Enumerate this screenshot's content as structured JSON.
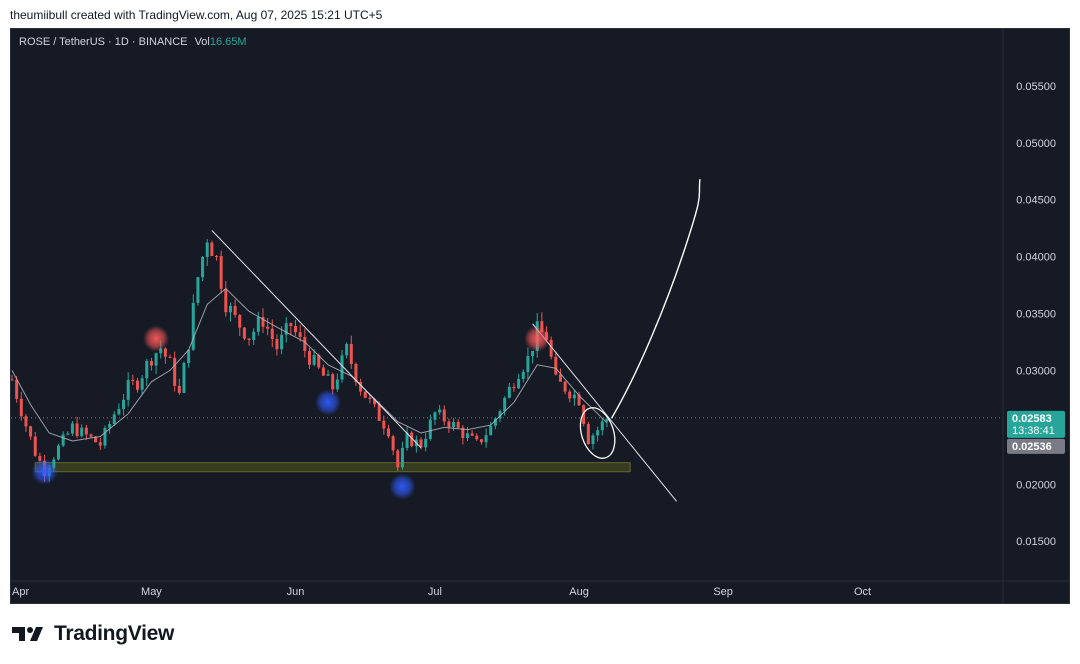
{
  "header": {
    "attribution": "theumiibull created with TradingView.com, Aug 07, 2025 15:21 UTC+5"
  },
  "legend": {
    "symbol": "ROSE / TetherUS · 1D · BINANCE",
    "vol_label": "Vol",
    "vol_value": "16.65M"
  },
  "price_scale": {
    "current_price": "0.02583",
    "countdown": "13:38:41",
    "ma_value": "0.02536"
  },
  "footer": {
    "brand": "TradingView"
  },
  "colors": {
    "up": "#26a69a",
    "down": "#ef5350",
    "background": "#161a25",
    "ma_line": "#b2b5be",
    "support_zone": "#3b4021",
    "current_price_label": "#26a69a",
    "ma_label": "#787b86"
  },
  "chart_data": {
    "type": "candlestick",
    "title": "ROSE / TetherUS · 1D · BINANCE",
    "y_ticks": [
      "0.05500",
      "0.05000",
      "0.04500",
      "0.04000",
      "0.03500",
      "0.03000",
      "0.02000",
      "0.01500"
    ],
    "y_tick_values": [
      0.055,
      0.05,
      0.045,
      0.04,
      0.035,
      0.03,
      0.02,
      0.015
    ],
    "x_ticks": [
      "Apr",
      "May",
      "Jun",
      "Jul",
      "Aug",
      "Sep",
      "Oct"
    ],
    "x_tick_dates": [
      "2025-04-01",
      "2025-05-01",
      "2025-06-01",
      "2025-07-01",
      "2025-08-01",
      "2025-09-01",
      "2025-10-01"
    ],
    "xlim": [
      "2025-04-01",
      "2025-10-31"
    ],
    "ylim": [
      0.0115,
      0.06
    ],
    "grid": false,
    "close_path": [
      [
        "2025-04-01",
        0.0292
      ],
      [
        "2025-04-04",
        0.0252
      ],
      [
        "2025-04-06",
        0.0228
      ],
      [
        "2025-04-08",
        0.0212
      ],
      [
        "2025-04-11",
        0.0232
      ],
      [
        "2025-04-14",
        0.025
      ],
      [
        "2025-04-18",
        0.024
      ],
      [
        "2025-04-20",
        0.0235
      ],
      [
        "2025-04-23",
        0.0262
      ],
      [
        "2025-04-26",
        0.0285
      ],
      [
        "2025-04-28",
        0.029
      ],
      [
        "2025-05-01",
        0.0312
      ],
      [
        "2025-05-03",
        0.032
      ],
      [
        "2025-05-05",
        0.0305
      ],
      [
        "2025-05-07",
        0.0278
      ],
      [
        "2025-05-09",
        0.0325
      ],
      [
        "2025-05-11",
        0.0382
      ],
      [
        "2025-05-13",
        0.0418
      ],
      [
        "2025-05-15",
        0.0398
      ],
      [
        "2025-05-17",
        0.036
      ],
      [
        "2025-05-19",
        0.0345
      ],
      [
        "2025-05-22",
        0.033
      ],
      [
        "2025-05-25",
        0.0345
      ],
      [
        "2025-05-28",
        0.032
      ],
      [
        "2025-05-31",
        0.034
      ],
      [
        "2025-06-03",
        0.0318
      ],
      [
        "2025-06-06",
        0.03
      ],
      [
        "2025-06-09",
        0.0285
      ],
      [
        "2025-06-12",
        0.0318
      ],
      [
        "2025-06-15",
        0.0285
      ],
      [
        "2025-06-18",
        0.0265
      ],
      [
        "2025-06-21",
        0.0248
      ],
      [
        "2025-06-23",
        0.0215
      ],
      [
        "2025-06-25",
        0.024
      ],
      [
        "2025-06-28",
        0.0235
      ],
      [
        "2025-07-01",
        0.0262
      ],
      [
        "2025-07-04",
        0.0255
      ],
      [
        "2025-07-07",
        0.0245
      ],
      [
        "2025-07-10",
        0.0235
      ],
      [
        "2025-07-13",
        0.025
      ],
      [
        "2025-07-16",
        0.0275
      ],
      [
        "2025-07-19",
        0.03
      ],
      [
        "2025-07-21",
        0.031
      ],
      [
        "2025-07-23",
        0.0335
      ],
      [
        "2025-07-25",
        0.033
      ],
      [
        "2025-07-27",
        0.029
      ],
      [
        "2025-07-29",
        0.0285
      ],
      [
        "2025-08-01",
        0.0275
      ],
      [
        "2025-08-03",
        0.024
      ],
      [
        "2025-08-05",
        0.0248
      ],
      [
        "2025-08-07",
        0.0258
      ]
    ],
    "ma_path": [
      [
        "2025-04-01",
        0.03
      ],
      [
        "2025-04-05",
        0.027
      ],
      [
        "2025-04-09",
        0.0245
      ],
      [
        "2025-04-14",
        0.0238
      ],
      [
        "2025-04-20",
        0.0242
      ],
      [
        "2025-04-26",
        0.0262
      ],
      [
        "2025-05-01",
        0.029
      ],
      [
        "2025-05-05",
        0.03
      ],
      [
        "2025-05-09",
        0.0318
      ],
      [
        "2025-05-13",
        0.0358
      ],
      [
        "2025-05-17",
        0.0372
      ],
      [
        "2025-05-22",
        0.0352
      ],
      [
        "2025-05-28",
        0.0338
      ],
      [
        "2025-06-03",
        0.0325
      ],
      [
        "2025-06-08",
        0.0305
      ],
      [
        "2025-06-13",
        0.0295
      ],
      [
        "2025-06-18",
        0.0275
      ],
      [
        "2025-06-23",
        0.0255
      ],
      [
        "2025-06-28",
        0.0245
      ],
      [
        "2025-07-03",
        0.025
      ],
      [
        "2025-07-08",
        0.0248
      ],
      [
        "2025-07-13",
        0.0252
      ],
      [
        "2025-07-18",
        0.0272
      ],
      [
        "2025-07-23",
        0.0305
      ],
      [
        "2025-07-27",
        0.0302
      ],
      [
        "2025-08-01",
        0.0278
      ],
      [
        "2025-08-05",
        0.0262
      ],
      [
        "2025-08-07",
        0.0254
      ]
    ],
    "annotations": {
      "trendline_1": [
        [
          "2025-05-14",
          0.0423
        ],
        [
          "2025-06-28",
          0.0232
        ]
      ],
      "trendline_2": [
        [
          "2025-07-22",
          0.0341
        ],
        [
          "2025-08-22",
          0.0185
        ]
      ],
      "support_zone": {
        "x": [
          "2025-04-06",
          "2025-08-12"
        ],
        "y": [
          0.0211,
          0.0219
        ]
      },
      "price_line": 0.02583,
      "projection_arrow": [
        [
          "2025-08-08",
          0.0258
        ],
        [
          "2025-08-14",
          0.03
        ],
        [
          "2025-08-20",
          0.036
        ],
        [
          "2025-08-24",
          0.041
        ],
        [
          "2025-08-27",
          0.0468
        ]
      ],
      "ellipse_center": [
        "2025-08-05",
        0.0245
      ],
      "circles": [
        {
          "date": "2025-04-08",
          "y": 0.0211,
          "color": "blue"
        },
        {
          "date": "2025-05-02",
          "y": 0.0328,
          "color": "red"
        },
        {
          "date": "2025-06-08",
          "y": 0.0272,
          "color": "blue"
        },
        {
          "date": "2025-06-24",
          "y": 0.0198,
          "color": "blue"
        },
        {
          "date": "2025-07-23",
          "y": 0.0328,
          "color": "red"
        }
      ]
    }
  }
}
